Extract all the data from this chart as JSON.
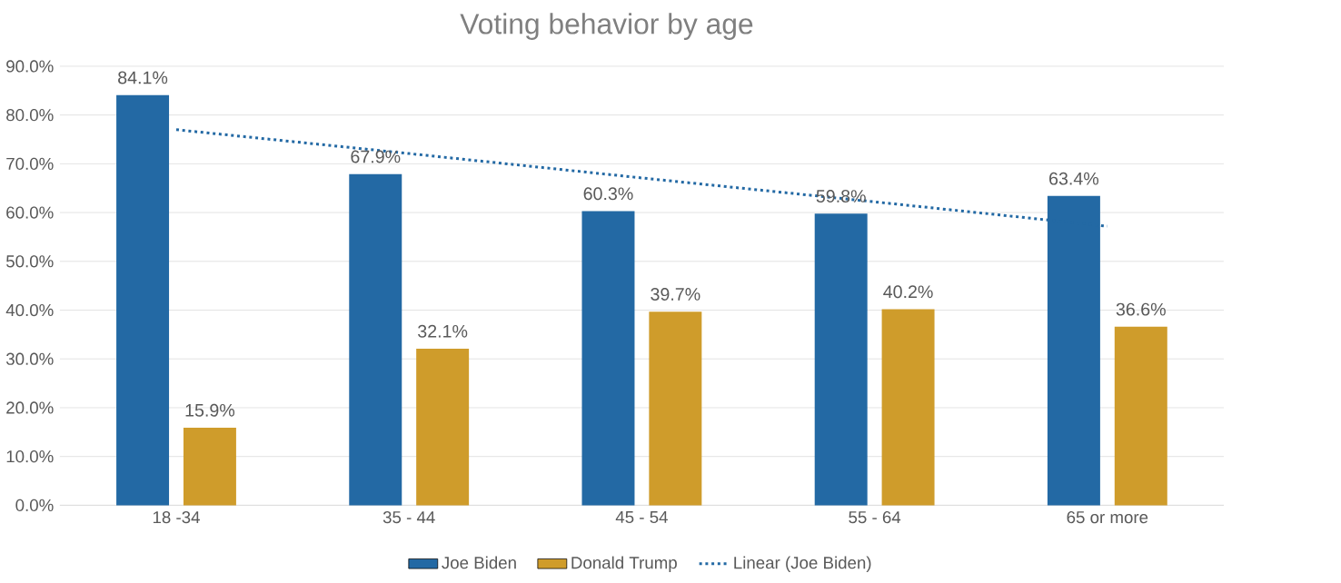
{
  "chart_data": {
    "type": "bar",
    "title": "Voting behavior by age",
    "categories": [
      "18 -34",
      "35 - 44",
      "45 - 54",
      "55 - 64",
      "65 or more"
    ],
    "series": [
      {
        "name": "Joe Biden",
        "color": "#2369a4",
        "values": [
          84.1,
          67.9,
          60.3,
          59.8,
          63.4
        ],
        "value_labels": [
          "84.1%",
          "67.9%",
          "60.3%",
          "59.8%",
          "63.4%"
        ]
      },
      {
        "name": "Donald Trump",
        "color": "#cf9c2b",
        "values": [
          15.9,
          32.1,
          39.7,
          40.2,
          36.6
        ],
        "value_labels": [
          "15.9%",
          "32.1%",
          "39.7%",
          "40.2%",
          "36.6%"
        ]
      },
      {
        "name": "Linear (Joe Biden)",
        "type": "line",
        "line_style": "dotted",
        "color": "#2369a4",
        "values": [
          77.0,
          72.1,
          67.1,
          62.2,
          57.2
        ]
      }
    ],
    "ylim": [
      0,
      90
    ],
    "yticks": [
      {
        "value": 0,
        "label": "0.0%"
      },
      {
        "value": 10,
        "label": "10.0%"
      },
      {
        "value": 20,
        "label": "20.0%"
      },
      {
        "value": 30,
        "label": "30.0%"
      },
      {
        "value": 40,
        "label": "40.0%"
      },
      {
        "value": 50,
        "label": "50.0%"
      },
      {
        "value": 60,
        "label": "60.0%"
      },
      {
        "value": 70,
        "label": "70.0%"
      },
      {
        "value": 80,
        "label": "80.0%"
      },
      {
        "value": 90,
        "label": "90.0%"
      }
    ],
    "grid": "y",
    "legend": "bottom"
  }
}
